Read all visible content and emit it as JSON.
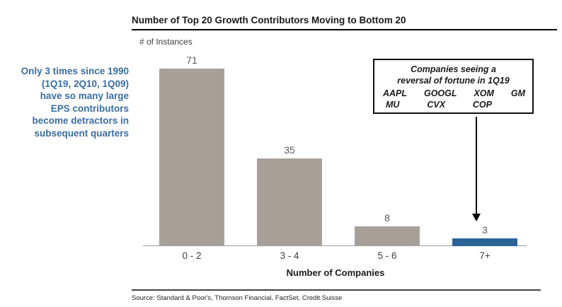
{
  "title": "Number of Top 20 Growth Contributors Moving to Bottom 20",
  "y_axis_note": "# of Instances",
  "left_annotation": "Only 3 times since 1990\n(1Q19, 2Q10, 1Q09)\nhave so many large\nEPS contributors\nbecome detractors in\nsubsequent quarters",
  "callout": {
    "title": "Companies seeing a\nreversal of fortune in 1Q19",
    "tickers_row1": [
      "AAPL",
      "GOOGL",
      "XOM",
      "GM"
    ],
    "tickers_row2": [
      "MU",
      "CVX",
      "COP"
    ]
  },
  "source": "Source: Standard & Poor's, Thomson Financial, FactSet, Credit Suisse",
  "colors": {
    "bar_gray": "#a7a099",
    "bar_blue": "#2a6496",
    "annotation_blue": "#3a6da3"
  },
  "chart_data": {
    "type": "bar",
    "categories": [
      "0 - 2",
      "3 - 4",
      "5 - 6",
      "7+"
    ],
    "values": [
      71,
      35,
      8,
      3
    ],
    "bar_colors": [
      "#a7a099",
      "#a7a099",
      "#a7a099",
      "#2a6496"
    ],
    "title": "Number of Top 20 Growth Contributors Moving to Bottom 20",
    "xlabel": "Number of Companies",
    "ylabel": "# of Instances",
    "ylim": [
      0,
      75
    ],
    "grid": false,
    "value_labels": true,
    "legend": false,
    "annotation": "Companies seeing a reversal of fortune in 1Q19: AAPL, GOOGL, XOM, GM, MU, CVX, COP (arrow points to 7+ bar)"
  }
}
